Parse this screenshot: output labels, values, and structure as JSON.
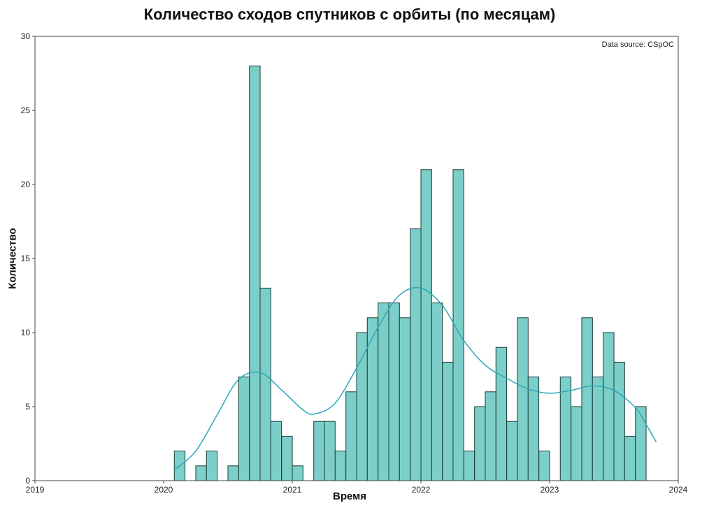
{
  "chart_data": {
    "type": "bar",
    "title": "Количество сходов спутников с орбиты (по месяцам)",
    "xlabel": "Время",
    "ylabel": "Количество",
    "source_note": "Data source: CSpOC",
    "xlim": [
      2019,
      2024
    ],
    "ylim": [
      0,
      30
    ],
    "x_ticks": [
      "2019",
      "2020",
      "2021",
      "2022",
      "2023",
      "2024"
    ],
    "y_ticks": [
      "0",
      "5",
      "10",
      "15",
      "20",
      "25",
      "30"
    ],
    "bar_color": "#7ccfc8",
    "bar_edge_color": "#1a3b38",
    "trend_color": "#2aa8b8",
    "bar_width_years": 0.0833,
    "bars": [
      {
        "x": 2020.083,
        "value": 2
      },
      {
        "x": 2020.25,
        "value": 1
      },
      {
        "x": 2020.333,
        "value": 2
      },
      {
        "x": 2020.5,
        "value": 1
      },
      {
        "x": 2020.583,
        "value": 7
      },
      {
        "x": 2020.667,
        "value": 28
      },
      {
        "x": 2020.75,
        "value": 13
      },
      {
        "x": 2020.833,
        "value": 4
      },
      {
        "x": 2020.917,
        "value": 3
      },
      {
        "x": 2021.0,
        "value": 1
      },
      {
        "x": 2021.167,
        "value": 4
      },
      {
        "x": 2021.25,
        "value": 4
      },
      {
        "x": 2021.333,
        "value": 2
      },
      {
        "x": 2021.417,
        "value": 6
      },
      {
        "x": 2021.5,
        "value": 10
      },
      {
        "x": 2021.583,
        "value": 11
      },
      {
        "x": 2021.667,
        "value": 12
      },
      {
        "x": 2021.75,
        "value": 12
      },
      {
        "x": 2021.833,
        "value": 11
      },
      {
        "x": 2021.917,
        "value": 17
      },
      {
        "x": 2022.0,
        "value": 21
      },
      {
        "x": 2022.083,
        "value": 12
      },
      {
        "x": 2022.167,
        "value": 8
      },
      {
        "x": 2022.25,
        "value": 21
      },
      {
        "x": 2022.333,
        "value": 2
      },
      {
        "x": 2022.417,
        "value": 5
      },
      {
        "x": 2022.5,
        "value": 6
      },
      {
        "x": 2022.583,
        "value": 9
      },
      {
        "x": 2022.667,
        "value": 4
      },
      {
        "x": 2022.75,
        "value": 11
      },
      {
        "x": 2022.833,
        "value": 7
      },
      {
        "x": 2022.917,
        "value": 2
      },
      {
        "x": 2023.083,
        "value": 7
      },
      {
        "x": 2023.167,
        "value": 5
      },
      {
        "x": 2023.25,
        "value": 11
      },
      {
        "x": 2023.333,
        "value": 7
      },
      {
        "x": 2023.417,
        "value": 10
      },
      {
        "x": 2023.5,
        "value": 8
      },
      {
        "x": 2023.583,
        "value": 3
      },
      {
        "x": 2023.667,
        "value": 5
      }
    ],
    "trend_line": [
      {
        "x": 2020.08,
        "y": 0.7
      },
      {
        "x": 2020.25,
        "y": 2.0
      },
      {
        "x": 2020.42,
        "y": 4.5
      },
      {
        "x": 2020.58,
        "y": 6.8
      },
      {
        "x": 2020.75,
        "y": 7.3
      },
      {
        "x": 2020.92,
        "y": 6.1
      },
      {
        "x": 2021.08,
        "y": 4.8
      },
      {
        "x": 2021.17,
        "y": 4.5
      },
      {
        "x": 2021.33,
        "y": 5.2
      },
      {
        "x": 2021.5,
        "y": 7.6
      },
      {
        "x": 2021.67,
        "y": 10.4
      },
      {
        "x": 2021.83,
        "y": 12.5
      },
      {
        "x": 2022.0,
        "y": 13.0
      },
      {
        "x": 2022.17,
        "y": 11.8
      },
      {
        "x": 2022.33,
        "y": 9.5
      },
      {
        "x": 2022.5,
        "y": 7.8
      },
      {
        "x": 2022.67,
        "y": 6.9
      },
      {
        "x": 2022.83,
        "y": 6.2
      },
      {
        "x": 2023.0,
        "y": 5.9
      },
      {
        "x": 2023.17,
        "y": 6.1
      },
      {
        "x": 2023.33,
        "y": 6.4
      },
      {
        "x": 2023.5,
        "y": 6.1
      },
      {
        "x": 2023.67,
        "y": 4.9
      },
      {
        "x": 2023.75,
        "y": 3.8
      },
      {
        "x": 2023.83,
        "y": 2.6
      }
    ]
  }
}
